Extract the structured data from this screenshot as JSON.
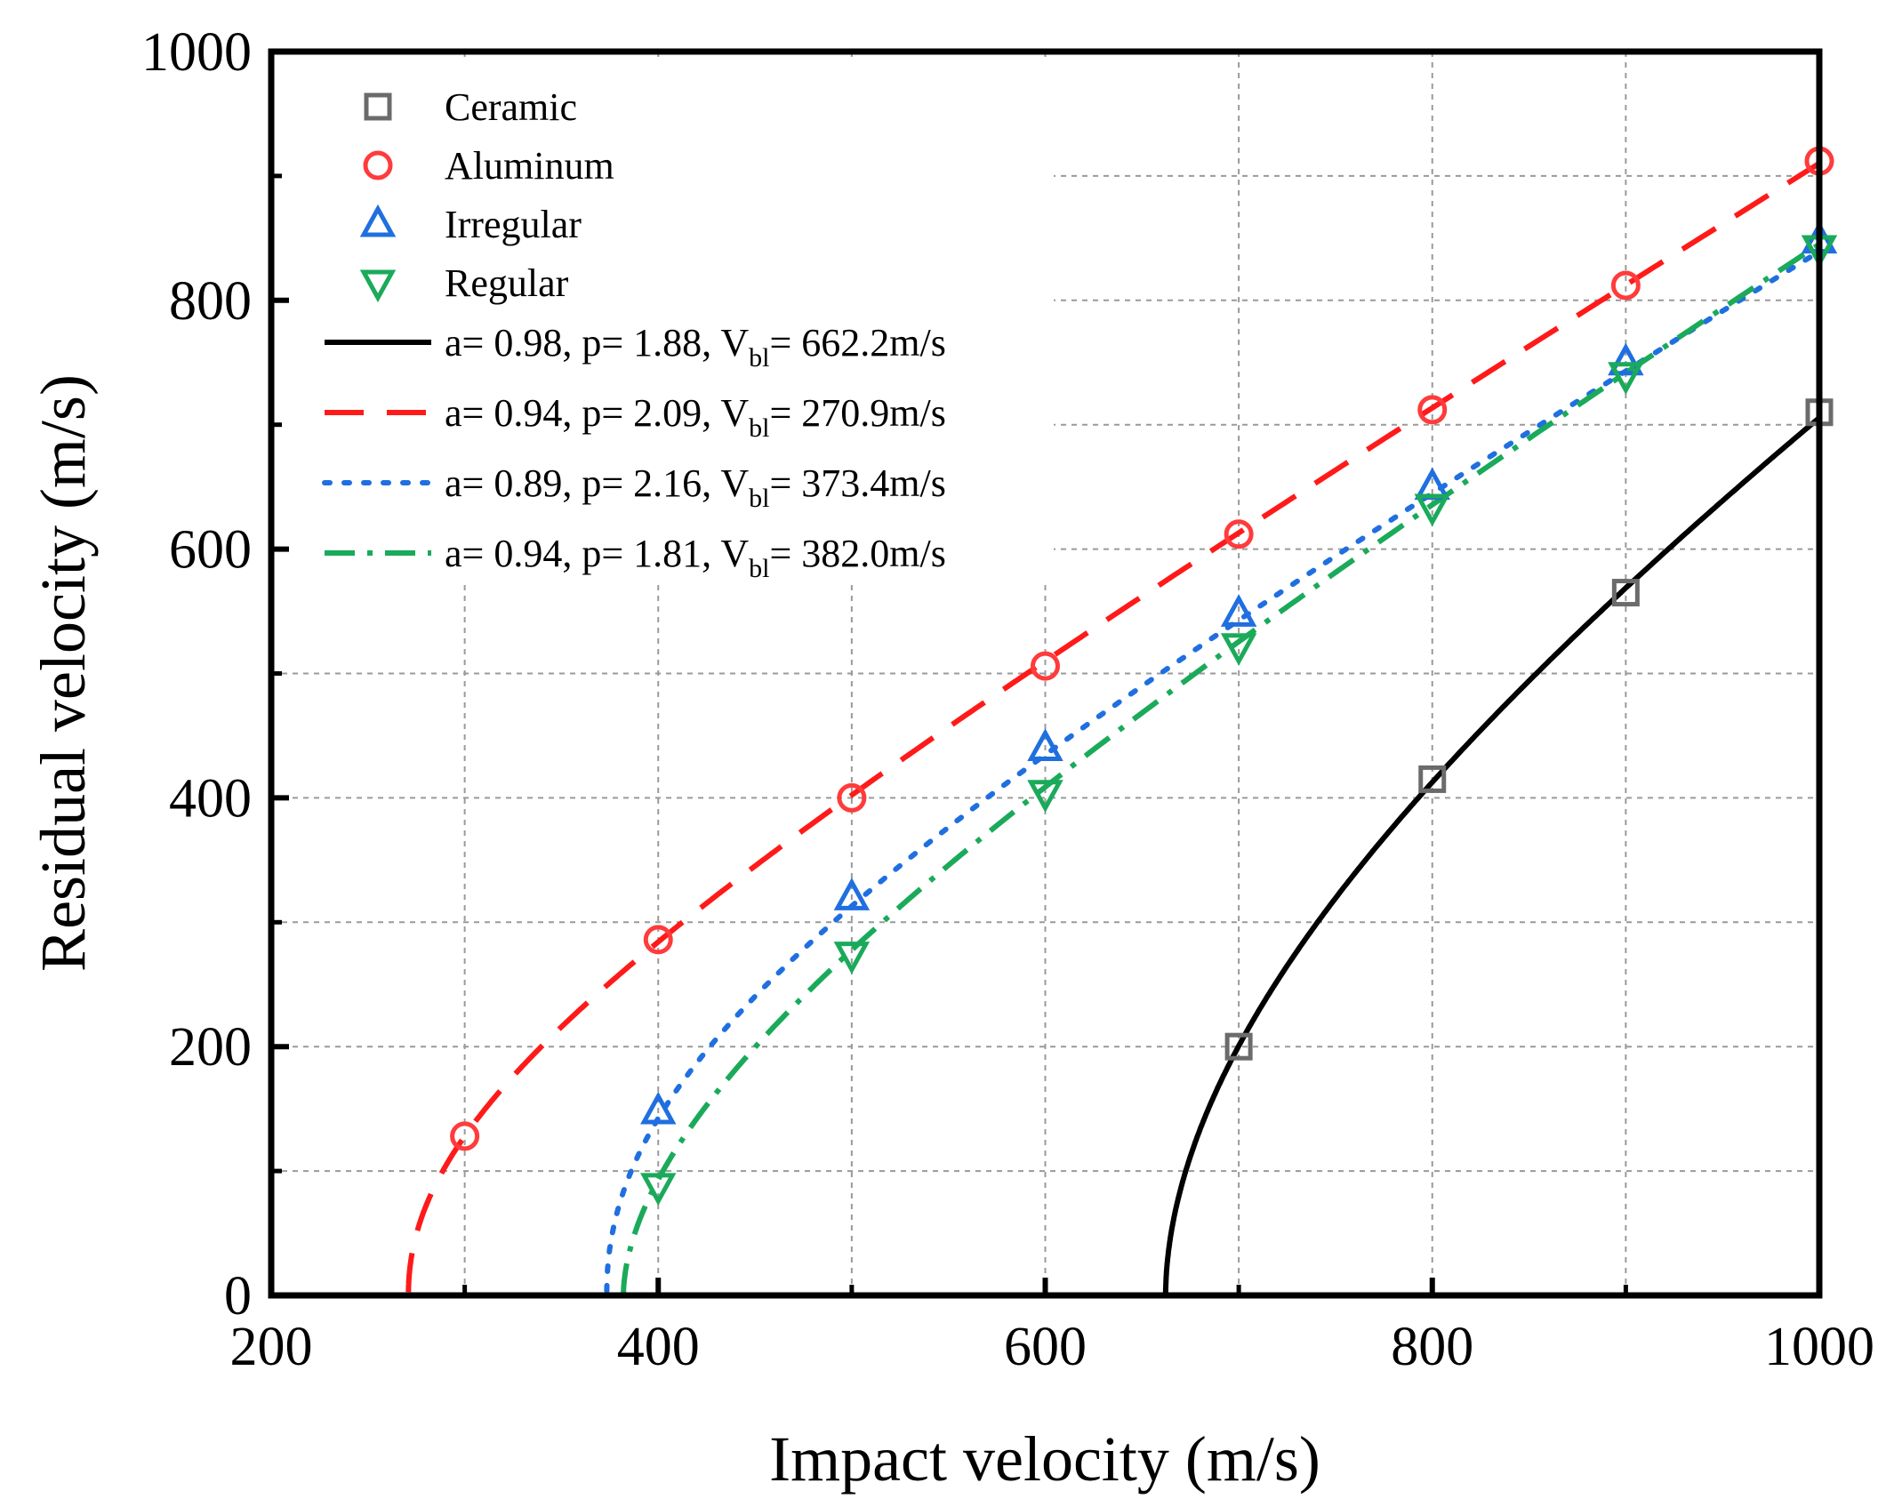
{
  "chart_data": {
    "type": "scatter",
    "title": "",
    "xlabel": "Impact velocity (m/s)",
    "ylabel": "Residual velocity (m/s)",
    "xlim": [
      200,
      1000
    ],
    "ylim": [
      0,
      1000
    ],
    "x_ticks": [
      "200",
      "400",
      "600",
      "800",
      "1000"
    ],
    "y_ticks": [
      "0",
      "200",
      "400",
      "600",
      "800",
      "1000"
    ],
    "grid": true,
    "legend_position": "top-left",
    "series": [
      {
        "name": "Ceramic",
        "marker": "square",
        "color": "#6b6b6b",
        "x": [
          700,
          800,
          900,
          1000
        ],
        "y": [
          200,
          415,
          565,
          710
        ]
      },
      {
        "name": "Aluminum",
        "marker": "circle",
        "color": "#ff3b3b",
        "x": [
          300,
          400,
          500,
          600,
          700,
          800,
          900,
          1000
        ],
        "y": [
          128,
          286,
          400,
          506,
          612,
          712,
          812,
          912
        ]
      },
      {
        "name": "Irregular",
        "marker": "triangle-up",
        "color": "#1f6fe0",
        "x": [
          400,
          500,
          600,
          700,
          800,
          900,
          1000
        ],
        "y": [
          148,
          320,
          440,
          548,
          650,
          750,
          848
        ]
      },
      {
        "name": "Regular",
        "marker": "triangle-down",
        "color": "#1aaa5a",
        "x": [
          400,
          500,
          600,
          700,
          800,
          900,
          1000
        ],
        "y": [
          88,
          274,
          404,
          522,
          634,
          740,
          842
        ]
      }
    ],
    "fits": [
      {
        "label_pre": "a= 0.98, p= 1.88, V",
        "label_sub": "bl",
        "label_post": "= 662.2m/s",
        "a": 0.98,
        "p": 1.88,
        "vbl": 662.2,
        "color": "#000000",
        "style": "solid"
      },
      {
        "label_pre": "a= 0.94, p= 2.09, V",
        "label_sub": "bl",
        "label_post": "= 270.9m/s",
        "a": 0.94,
        "p": 2.09,
        "vbl": 270.9,
        "color": "#ff1a1a",
        "style": "dash"
      },
      {
        "label_pre": "a= 0.89, p= 2.16, V",
        "label_sub": "bl",
        "label_post": "= 373.4m/s",
        "a": 0.89,
        "p": 2.16,
        "vbl": 373.4,
        "color": "#1f6fe0",
        "style": "dot"
      },
      {
        "label_pre": "a= 0.94, p= 1.81, V",
        "label_sub": "bl",
        "label_post": "= 382.0m/s",
        "a": 0.94,
        "p": 1.81,
        "vbl": 382.0,
        "color": "#1aaa5a",
        "style": "dashdot"
      }
    ]
  }
}
